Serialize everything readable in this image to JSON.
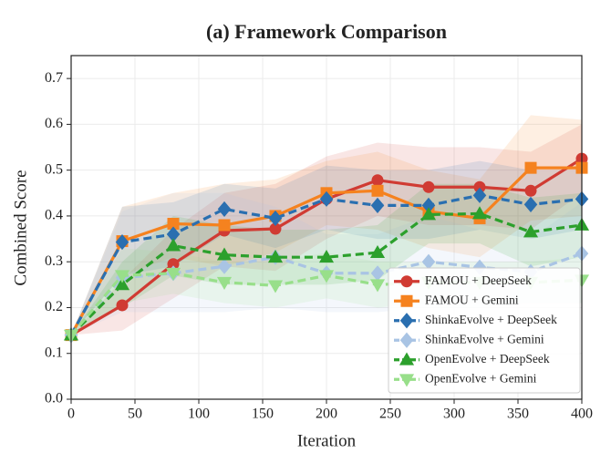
{
  "chart_data": {
    "type": "line",
    "title": "(a) Framework Comparison",
    "x_label": "Iteration",
    "y_label": "Combined Score",
    "x": [
      0,
      40,
      80,
      120,
      160,
      200,
      240,
      280,
      320,
      360,
      400
    ],
    "xlim": [
      0,
      400
    ],
    "xticks": [
      0,
      50,
      100,
      150,
      200,
      250,
      300,
      350,
      400
    ],
    "ylim": [
      0,
      0.75
    ],
    "yticks": [
      {
        "value": 0,
        "label": "0.0"
      },
      0.1,
      0.2,
      0.3,
      0.4,
      0.5,
      0.6,
      0.7
    ],
    "grid": true,
    "legend": "lower-right",
    "series": [
      {
        "name": "FAMOU + DeepSeek",
        "color": "#d03b33",
        "marker": "circle",
        "dash": false,
        "values": [
          0.14,
          0.205,
          0.295,
          0.368,
          0.372,
          0.437,
          0.478,
          0.463,
          0.463,
          0.455,
          0.525
        ],
        "upper": [
          0.14,
          0.26,
          0.37,
          0.45,
          0.47,
          0.53,
          0.56,
          0.55,
          0.55,
          0.54,
          0.6
        ],
        "lower": [
          0.14,
          0.15,
          0.22,
          0.29,
          0.28,
          0.35,
          0.4,
          0.38,
          0.38,
          0.37,
          0.45
        ]
      },
      {
        "name": "FAMOU + Gemini",
        "color": "#f5821f",
        "marker": "square",
        "dash": false,
        "values": [
          0.14,
          0.345,
          0.383,
          0.38,
          0.4,
          0.45,
          0.455,
          0.41,
          0.395,
          0.505,
          0.505
        ],
        "upper": [
          0.14,
          0.42,
          0.45,
          0.47,
          0.48,
          0.52,
          0.54,
          0.5,
          0.48,
          0.62,
          0.61
        ],
        "lower": [
          0.14,
          0.27,
          0.31,
          0.29,
          0.32,
          0.38,
          0.37,
          0.33,
          0.31,
          0.39,
          0.4
        ]
      },
      {
        "name": "ShinkaEvolve + DeepSeek",
        "color": "#2a6fb0",
        "marker": "diamond",
        "dash": true,
        "values": [
          0.14,
          0.343,
          0.36,
          0.415,
          0.395,
          0.437,
          0.423,
          0.423,
          0.445,
          0.425,
          0.437
        ],
        "upper": [
          0.14,
          0.42,
          0.43,
          0.47,
          0.46,
          0.51,
          0.5,
          0.5,
          0.52,
          0.5,
          0.5
        ],
        "lower": [
          0.14,
          0.27,
          0.29,
          0.36,
          0.33,
          0.37,
          0.35,
          0.35,
          0.37,
          0.35,
          0.37
        ]
      },
      {
        "name": "ShinkaEvolve + Gemini",
        "color": "#a9c4e4",
        "marker": "diamond",
        "dash": true,
        "values": [
          0.14,
          0.265,
          0.275,
          0.29,
          0.31,
          0.275,
          0.275,
          0.3,
          0.288,
          0.278,
          0.318
        ],
        "upper": [
          0.14,
          0.41,
          0.45,
          0.45,
          0.42,
          0.36,
          0.36,
          0.4,
          0.37,
          0.35,
          0.43
        ],
        "lower": [
          0.14,
          0.19,
          0.19,
          0.19,
          0.2,
          0.19,
          0.19,
          0.2,
          0.2,
          0.21,
          0.21
        ]
      },
      {
        "name": "OpenEvolve + DeepSeek",
        "color": "#2ca02c",
        "marker": "triangle-up",
        "dash": true,
        "values": [
          0.14,
          0.25,
          0.335,
          0.315,
          0.31,
          0.31,
          0.32,
          0.403,
          0.405,
          0.365,
          0.38
        ],
        "upper": [
          0.14,
          0.3,
          0.4,
          0.38,
          0.37,
          0.37,
          0.38,
          0.47,
          0.47,
          0.44,
          0.45
        ],
        "lower": [
          0.14,
          0.2,
          0.27,
          0.25,
          0.25,
          0.25,
          0.26,
          0.34,
          0.34,
          0.29,
          0.31
        ]
      },
      {
        "name": "OpenEvolve + Gemini",
        "color": "#98df8a",
        "marker": "triangle-down",
        "dash": true,
        "values": [
          0.14,
          0.27,
          0.275,
          0.255,
          0.248,
          0.27,
          0.25,
          0.255,
          0.255,
          0.255,
          0.26
        ],
        "upper": [
          0.14,
          0.33,
          0.32,
          0.3,
          0.3,
          0.32,
          0.3,
          0.3,
          0.3,
          0.3,
          0.31
        ],
        "lower": [
          0.14,
          0.21,
          0.23,
          0.21,
          0.2,
          0.22,
          0.2,
          0.21,
          0.21,
          0.21,
          0.21
        ]
      }
    ]
  }
}
